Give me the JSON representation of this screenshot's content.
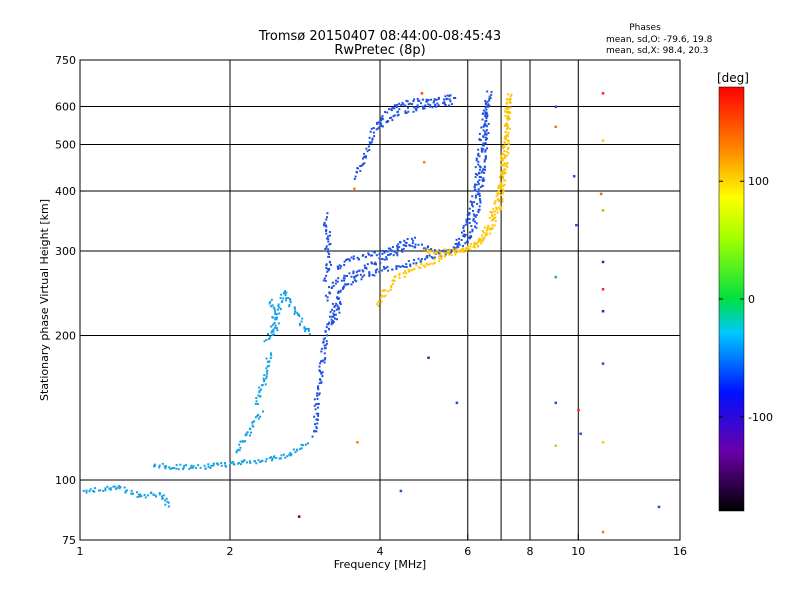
{
  "chart_data": {
    "type": "scatter",
    "title": "Tromsø 20150407 08:44:00-08:45:43",
    "subtitle": "RwPretec (8p)",
    "xlabel": "Frequency [MHz]",
    "ylabel": "Stationary phase Virtual Height [km]",
    "x_scale": "log",
    "y_scale": "log",
    "xlim": [
      1,
      16
    ],
    "ylim": [
      75,
      750
    ],
    "x_ticks": [
      1,
      2,
      4,
      6,
      8,
      10,
      16
    ],
    "x_tick_labels": [
      "1",
      "2",
      "4",
      "6",
      "8",
      "10",
      "16"
    ],
    "y_ticks": [
      75,
      100,
      200,
      300,
      400,
      500,
      600,
      750
    ],
    "y_tick_labels": [
      "75",
      "100",
      "200",
      "300",
      "400",
      "500",
      "600",
      "750"
    ],
    "x_grid": [
      2,
      4,
      6,
      7,
      8,
      10
    ],
    "y_grid": [
      100,
      200,
      300,
      400,
      500,
      600
    ],
    "grid": true,
    "phase_info": {
      "title": "Phases",
      "line_o": "mean, sd,O: -79.6, 19.8",
      "line_x": "mean, sd,X:  98.4, 20.3"
    },
    "colorbar": {
      "label": "[deg]",
      "range": [
        -180,
        180
      ],
      "ticks": [
        100,
        0,
        -100
      ],
      "tick_labels": [
        "100",
        "0",
        "-100"
      ]
    },
    "series": [
      {
        "mode": "O",
        "color": "#1e50e6",
        "phase": -80,
        "traces": [
          [
            [
              2.95,
              125
            ],
            [
              2.97,
              145
            ],
            [
              3.02,
              165
            ],
            [
              3.07,
              185
            ],
            [
              3.12,
              205
            ],
            [
              3.2,
              228
            ],
            [
              3.3,
              248
            ],
            [
              3.5,
              262
            ],
            [
              3.8,
              270
            ],
            [
              4.1,
              276
            ],
            [
              4.5,
              283
            ],
            [
              5.0,
              293
            ],
            [
              5.5,
              300
            ],
            [
              5.9,
              312
            ],
            [
              6.15,
              340
            ],
            [
              6.3,
              380
            ],
            [
              6.4,
              440
            ],
            [
              6.5,
              520
            ],
            [
              6.55,
              600
            ],
            [
              6.6,
              650
            ]
          ],
          [
            [
              3.1,
              240
            ],
            [
              3.2,
              258
            ],
            [
              3.4,
              266
            ],
            [
              3.7,
              278
            ],
            [
              4.0,
              288
            ],
            [
              4.3,
              300
            ],
            [
              4.6,
              310
            ],
            [
              4.9,
              306
            ],
            [
              5.2,
              300
            ],
            [
              5.5,
              303
            ],
            [
              5.8,
              320
            ],
            [
              6.0,
              350
            ],
            [
              6.2,
              400
            ],
            [
              6.3,
              470
            ],
            [
              6.45,
              560
            ],
            [
              6.55,
              630
            ]
          ],
          [
            [
              3.25,
              275
            ],
            [
              3.35,
              285
            ],
            [
              3.6,
              292
            ],
            [
              3.9,
              298
            ],
            [
              4.2,
              304
            ],
            [
              4.5,
              316
            ],
            [
              4.7,
              320
            ]
          ],
          [
            [
              3.15,
              210
            ],
            [
              3.25,
              220
            ],
            [
              3.3,
              240
            ]
          ],
          [
            [
              3.1,
              262
            ],
            [
              3.15,
              280
            ],
            [
              3.1,
              300
            ],
            [
              3.15,
              320
            ],
            [
              3.1,
              340
            ],
            [
              3.12,
              360
            ]
          ],
          [
            [
              3.55,
              430
            ],
            [
              3.7,
              470
            ],
            [
              3.8,
              510
            ],
            [
              3.9,
              545
            ],
            [
              4.0,
              570
            ],
            [
              4.2,
              600
            ],
            [
              4.5,
              615
            ],
            [
              4.9,
              620
            ],
            [
              5.3,
              625
            ],
            [
              5.7,
              635
            ]
          ],
          [
            [
              3.95,
              540
            ],
            [
              4.1,
              560
            ],
            [
              4.3,
              585
            ],
            [
              4.7,
              598
            ],
            [
              5.2,
              605
            ],
            [
              5.6,
              615
            ]
          ]
        ]
      },
      {
        "mode": "X",
        "color": "#ffc400",
        "phase": 98,
        "traces": [
          [
            [
              3.95,
              232
            ],
            [
              4.1,
              250
            ],
            [
              4.3,
              265
            ],
            [
              4.6,
              275
            ],
            [
              5.0,
              285
            ],
            [
              5.4,
              295
            ],
            [
              5.8,
              302
            ],
            [
              6.2,
              310
            ],
            [
              6.6,
              330
            ],
            [
              6.9,
              370
            ],
            [
              7.05,
              430
            ],
            [
              7.15,
              500
            ],
            [
              7.2,
              580
            ],
            [
              7.25,
              650
            ]
          ],
          [
            [
              4.9,
              300
            ],
            [
              5.3,
              300
            ],
            [
              5.8,
              303
            ],
            [
              6.2,
              312
            ],
            [
              6.6,
              340
            ],
            [
              6.9,
              400
            ],
            [
              7.05,
              470
            ],
            [
              7.15,
              540
            ],
            [
              7.2,
              620
            ]
          ]
        ]
      },
      {
        "mode": "O",
        "color": "#14a0e6",
        "phase": -40,
        "traces": [
          [
            [
              1.4,
              108
            ],
            [
              1.5,
              107
            ],
            [
              1.7,
              107
            ],
            [
              1.9,
              108
            ],
            [
              2.1,
              109
            ],
            [
              2.3,
              110
            ],
            [
              2.5,
              112
            ],
            [
              2.7,
              115
            ],
            [
              2.85,
              120
            ]
          ],
          [
            [
              2.45,
              202
            ],
            [
              2.5,
              230
            ],
            [
              2.55,
              250
            ],
            [
              2.6,
              240
            ],
            [
              2.7,
              225
            ],
            [
              2.8,
              210
            ],
            [
              2.9,
              202
            ]
          ],
          [
            [
              2.35,
              195
            ],
            [
              2.45,
              215
            ],
            [
              2.4,
              240
            ]
          ],
          [
            [
              2.25,
              145
            ],
            [
              2.35,
              165
            ],
            [
              2.4,
              185
            ]
          ],
          [
            [
              2.05,
              115
            ],
            [
              2.2,
              128
            ],
            [
              2.3,
              140
            ]
          ],
          [
            [
              1.02,
              95
            ],
            [
              1.1,
              96
            ],
            [
              1.2,
              97
            ],
            [
              1.3,
              93
            ],
            [
              1.45,
              94
            ],
            [
              1.5,
              88
            ]
          ]
        ]
      }
    ],
    "scatter": [
      {
        "x": 9.0,
        "y": 600,
        "color": "#1e50e6"
      },
      {
        "x": 9.0,
        "y": 545,
        "color": "#e08020"
      },
      {
        "x": 9.0,
        "y": 265,
        "color": "#20c040"
      },
      {
        "x": 9.0,
        "y": 145,
        "color": "#1e50e6"
      },
      {
        "x": 9.0,
        "y": 118,
        "color": "#c8d020"
      },
      {
        "x": 9.8,
        "y": 430,
        "color": "#1e50e6"
      },
      {
        "x": 9.9,
        "y": 340,
        "color": "#1e50e6"
      },
      {
        "x": 10.0,
        "y": 140,
        "color": "#ff2020"
      },
      {
        "x": 10.1,
        "y": 125,
        "color": "#1e50e6"
      },
      {
        "x": 11.2,
        "y": 640,
        "color": "#ff2020"
      },
      {
        "x": 11.2,
        "y": 510,
        "color": "#ffd000"
      },
      {
        "x": 11.1,
        "y": 395,
        "color": "#ff6000"
      },
      {
        "x": 11.2,
        "y": 365,
        "color": "#80e000"
      },
      {
        "x": 11.2,
        "y": 285,
        "color": "#2030a0"
      },
      {
        "x": 11.2,
        "y": 250,
        "color": "#ff2020"
      },
      {
        "x": 11.2,
        "y": 225,
        "color": "#2030a0"
      },
      {
        "x": 11.2,
        "y": 175,
        "color": "#1e50e6"
      },
      {
        "x": 11.2,
        "y": 120,
        "color": "#ffd000"
      },
      {
        "x": 11.2,
        "y": 78,
        "color": "#ff8000"
      },
      {
        "x": 14.5,
        "y": 88,
        "color": "#1e50e6"
      },
      {
        "x": 5.0,
        "y": 180,
        "color": "#2030a0"
      },
      {
        "x": 5.7,
        "y": 145,
        "color": "#1e50e6"
      },
      {
        "x": 4.4,
        "y": 95,
        "color": "#1e50e6"
      },
      {
        "x": 2.75,
        "y": 84,
        "color": "#800000"
      },
      {
        "x": 3.6,
        "y": 120,
        "color": "#ff8000"
      },
      {
        "x": 4.9,
        "y": 460,
        "color": "#ff8000"
      },
      {
        "x": 4.85,
        "y": 640,
        "color": "#ff4000"
      },
      {
        "x": 3.55,
        "y": 405,
        "color": "#ff8000"
      }
    ]
  }
}
